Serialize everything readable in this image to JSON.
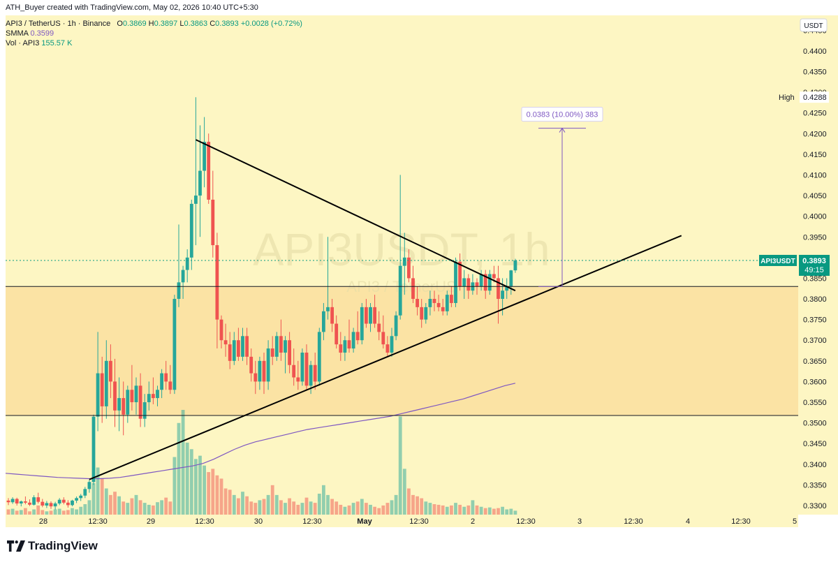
{
  "header": {
    "created_by": "ATH_Buyer created with TradingView.com, May 02, 2026 10:40 UTC+5:30",
    "symbol_line": "API3 / TetherUS · 1h · Binance",
    "o_label": "O",
    "o_val": "0.3869",
    "h_label": "H",
    "h_val": "0.3897",
    "l_label": "L",
    "l_val": "0.3863",
    "c_label": "C",
    "c_val": "0.3893",
    "change": "+0.0028 (+0.72%)",
    "smma_label": "SMMA",
    "smma_val": "0.3599",
    "vol_label": "Vol · API3",
    "vol_val": "155.57 K"
  },
  "watermark": {
    "main": "API3USDT, 1h",
    "sub": "API3 / TetherUS"
  },
  "currency_button": "USDT",
  "high_marker": {
    "label": "High",
    "value": "0.4288"
  },
  "last_price": {
    "symbol": "API3USDT",
    "value": "0.3893",
    "countdown": "49:15"
  },
  "measure_label": "0.0383 (10.00%) 383",
  "footer": {
    "brand": "TradingView"
  },
  "colors": {
    "background": "#fdf6c3",
    "zone": "#fbe3a4",
    "up": "#26a69a",
    "down": "#ef5350",
    "smma": "#7e57c2",
    "price_line": "#089981",
    "trendline": "#000000"
  },
  "chart_data": {
    "type": "candlestick",
    "symbol": "API3 / TetherUS",
    "timeframe": "1h",
    "y_ticks": [
      "0.4450",
      "0.4400",
      "0.4350",
      "0.4300",
      "0.4250",
      "0.4200",
      "0.4150",
      "0.4100",
      "0.4050",
      "0.4000",
      "0.3950",
      "0.3900",
      "0.3850",
      "0.3800",
      "0.3750",
      "0.3700",
      "0.3650",
      "0.3600",
      "0.3550",
      "0.3500",
      "0.3450",
      "0.3400",
      "0.3350",
      "0.3300"
    ],
    "x_ticks": [
      "28",
      "12:30",
      "29",
      "12:30",
      "30",
      "12:30",
      "May",
      "12:30",
      "2",
      "12:30",
      "3",
      "12:30",
      "4",
      "12:30",
      "5"
    ],
    "ylim": [
      0.3278,
      0.4486
    ],
    "candles": [
      [
        0.3312,
        0.3318,
        0.3301,
        0.3308
      ],
      [
        0.3308,
        0.332,
        0.3304,
        0.3316
      ],
      [
        0.3316,
        0.3319,
        0.33,
        0.3305
      ],
      [
        0.3305,
        0.3312,
        0.3298,
        0.331
      ],
      [
        0.331,
        0.3322,
        0.3303,
        0.3307
      ],
      [
        0.3307,
        0.3315,
        0.3299,
        0.3302
      ],
      [
        0.3302,
        0.3325,
        0.33,
        0.332
      ],
      [
        0.332,
        0.3331,
        0.3305,
        0.3309
      ],
      [
        0.3309,
        0.3316,
        0.3296,
        0.33
      ],
      [
        0.33,
        0.3311,
        0.3294,
        0.3306
      ],
      [
        0.3306,
        0.331,
        0.3292,
        0.3298
      ],
      [
        0.3298,
        0.3309,
        0.329,
        0.3305
      ],
      [
        0.3305,
        0.3318,
        0.3301,
        0.3314
      ],
      [
        0.3314,
        0.332,
        0.3303,
        0.3307
      ],
      [
        0.3307,
        0.3313,
        0.3295,
        0.3301
      ],
      [
        0.3301,
        0.3314,
        0.3298,
        0.3312
      ],
      [
        0.3312,
        0.3322,
        0.3306,
        0.3318
      ],
      [
        0.3318,
        0.3328,
        0.3311,
        0.3324
      ],
      [
        0.3324,
        0.3345,
        0.3318,
        0.334
      ],
      [
        0.334,
        0.3362,
        0.3331,
        0.3357
      ],
      [
        0.3357,
        0.352,
        0.335,
        0.3515
      ],
      [
        0.3515,
        0.372,
        0.348,
        0.362
      ],
      [
        0.362,
        0.366,
        0.35,
        0.354
      ],
      [
        0.354,
        0.37,
        0.351,
        0.365
      ],
      [
        0.365,
        0.369,
        0.356,
        0.36
      ],
      [
        0.36,
        0.3655,
        0.349,
        0.353
      ],
      [
        0.353,
        0.361,
        0.348,
        0.356
      ],
      [
        0.356,
        0.36,
        0.347,
        0.352
      ],
      [
        0.352,
        0.359,
        0.35,
        0.358
      ],
      [
        0.358,
        0.364,
        0.353,
        0.355
      ],
      [
        0.355,
        0.361,
        0.352,
        0.359
      ],
      [
        0.359,
        0.362,
        0.349,
        0.351
      ],
      [
        0.351,
        0.357,
        0.349,
        0.355
      ],
      [
        0.355,
        0.36,
        0.353,
        0.357
      ],
      [
        0.357,
        0.361,
        0.3545,
        0.356
      ],
      [
        0.356,
        0.359,
        0.354,
        0.358
      ],
      [
        0.358,
        0.363,
        0.356,
        0.362
      ],
      [
        0.362,
        0.365,
        0.358,
        0.36
      ],
      [
        0.36,
        0.364,
        0.357,
        0.358
      ],
      [
        0.358,
        0.381,
        0.357,
        0.38
      ],
      [
        0.38,
        0.398,
        0.378,
        0.384
      ],
      [
        0.384,
        0.388,
        0.38,
        0.387
      ],
      [
        0.387,
        0.392,
        0.384,
        0.39
      ],
      [
        0.39,
        0.404,
        0.387,
        0.403
      ],
      [
        0.403,
        0.4288,
        0.393,
        0.405
      ],
      [
        0.405,
        0.422,
        0.395,
        0.411
      ],
      [
        0.411,
        0.424,
        0.407,
        0.418
      ],
      [
        0.418,
        0.42,
        0.403,
        0.404
      ],
      [
        0.404,
        0.411,
        0.39,
        0.393
      ],
      [
        0.393,
        0.396,
        0.368,
        0.375
      ],
      [
        0.375,
        0.376,
        0.368,
        0.37
      ],
      [
        0.37,
        0.374,
        0.366,
        0.369
      ],
      [
        0.369,
        0.372,
        0.363,
        0.365
      ],
      [
        0.365,
        0.372,
        0.364,
        0.37
      ],
      [
        0.37,
        0.373,
        0.365,
        0.366
      ],
      [
        0.366,
        0.373,
        0.365,
        0.371
      ],
      [
        0.371,
        0.373,
        0.364,
        0.366
      ],
      [
        0.366,
        0.368,
        0.36,
        0.362
      ],
      [
        0.362,
        0.365,
        0.357,
        0.36
      ],
      [
        0.36,
        0.366,
        0.358,
        0.365
      ],
      [
        0.365,
        0.367,
        0.357,
        0.36
      ],
      [
        0.36,
        0.37,
        0.358,
        0.368
      ],
      [
        0.368,
        0.371,
        0.364,
        0.366
      ],
      [
        0.366,
        0.372,
        0.365,
        0.371
      ],
      [
        0.371,
        0.375,
        0.365,
        0.367
      ],
      [
        0.367,
        0.371,
        0.362,
        0.37
      ],
      [
        0.37,
        0.372,
        0.362,
        0.364
      ],
      [
        0.364,
        0.368,
        0.359,
        0.361
      ],
      [
        0.361,
        0.365,
        0.358,
        0.36
      ],
      [
        0.36,
        0.368,
        0.359,
        0.367
      ],
      [
        0.367,
        0.369,
        0.358,
        0.359
      ],
      [
        0.359,
        0.365,
        0.357,
        0.364
      ],
      [
        0.364,
        0.367,
        0.358,
        0.36
      ],
      [
        0.36,
        0.373,
        0.359,
        0.372
      ],
      [
        0.372,
        0.379,
        0.37,
        0.377
      ],
      [
        0.377,
        0.395,
        0.375,
        0.378
      ],
      [
        0.378,
        0.38,
        0.372,
        0.374
      ],
      [
        0.374,
        0.376,
        0.368,
        0.369
      ],
      [
        0.369,
        0.372,
        0.365,
        0.367
      ],
      [
        0.367,
        0.371,
        0.365,
        0.37
      ],
      [
        0.37,
        0.375,
        0.367,
        0.368
      ],
      [
        0.368,
        0.373,
        0.367,
        0.372
      ],
      [
        0.372,
        0.377,
        0.369,
        0.37
      ],
      [
        0.37,
        0.379,
        0.369,
        0.378
      ],
      [
        0.378,
        0.38,
        0.373,
        0.374
      ],
      [
        0.374,
        0.379,
        0.372,
        0.378
      ],
      [
        0.378,
        0.381,
        0.373,
        0.374
      ],
      [
        0.374,
        0.377,
        0.37,
        0.372
      ],
      [
        0.372,
        0.376,
        0.368,
        0.369
      ],
      [
        0.369,
        0.371,
        0.366,
        0.367
      ],
      [
        0.367,
        0.373,
        0.366,
        0.371
      ],
      [
        0.371,
        0.377,
        0.37,
        0.376
      ],
      [
        0.376,
        0.41,
        0.375,
        0.388
      ],
      [
        0.388,
        0.396,
        0.381,
        0.39
      ],
      [
        0.39,
        0.392,
        0.384,
        0.385
      ],
      [
        0.385,
        0.388,
        0.379,
        0.38
      ],
      [
        0.38,
        0.383,
        0.376,
        0.378
      ],
      [
        0.378,
        0.38,
        0.373,
        0.375
      ],
      [
        0.375,
        0.379,
        0.374,
        0.378
      ],
      [
        0.378,
        0.382,
        0.376,
        0.38
      ],
      [
        0.38,
        0.382,
        0.377,
        0.379
      ],
      [
        0.379,
        0.381,
        0.377,
        0.378
      ],
      [
        0.378,
        0.38,
        0.376,
        0.377
      ],
      [
        0.377,
        0.382,
        0.376,
        0.381
      ],
      [
        0.381,
        0.383,
        0.378,
        0.379
      ],
      [
        0.379,
        0.39,
        0.378,
        0.389
      ],
      [
        0.389,
        0.391,
        0.382,
        0.383
      ],
      [
        0.383,
        0.387,
        0.38,
        0.385
      ],
      [
        0.385,
        0.386,
        0.38,
        0.382
      ],
      [
        0.382,
        0.386,
        0.381,
        0.384
      ],
      [
        0.384,
        0.385,
        0.381,
        0.383
      ],
      [
        0.383,
        0.387,
        0.382,
        0.386
      ],
      [
        0.386,
        0.387,
        0.38,
        0.382
      ],
      [
        0.382,
        0.387,
        0.381,
        0.386
      ],
      [
        0.386,
        0.388,
        0.384,
        0.385
      ],
      [
        0.385,
        0.388,
        0.374,
        0.38
      ],
      [
        0.38,
        0.385,
        0.376,
        0.382
      ],
      [
        0.382,
        0.385,
        0.38,
        0.383
      ],
      [
        0.383,
        0.387,
        0.381,
        0.3869
      ],
      [
        0.3869,
        0.3897,
        0.3863,
        0.3893
      ]
    ],
    "volumes": [
      8,
      9,
      6,
      7,
      10,
      5,
      8,
      14,
      7,
      5,
      6,
      8,
      9,
      6,
      7,
      10,
      8,
      12,
      16,
      22,
      48,
      72,
      55,
      40,
      30,
      35,
      28,
      20,
      18,
      25,
      30,
      22,
      18,
      15,
      14,
      19,
      22,
      26,
      20,
      88,
      140,
      160,
      110,
      100,
      85,
      90,
      75,
      65,
      70,
      60,
      55,
      40,
      38,
      30,
      25,
      35,
      28,
      20,
      18,
      22,
      24,
      30,
      45,
      30,
      22,
      18,
      25,
      20,
      15,
      18,
      26,
      20,
      18,
      32,
      45,
      30,
      24,
      20,
      15,
      12,
      14,
      18,
      20,
      24,
      18,
      15,
      12,
      10,
      14,
      18,
      22,
      30,
      150,
      70,
      40,
      30,
      28,
      25,
      20,
      18,
      16,
      15,
      14,
      12,
      14,
      18,
      15,
      12,
      14,
      22,
      14,
      12,
      10,
      11,
      9,
      10,
      12,
      8,
      9,
      6
    ],
    "smma": [
      0.3378,
      0.3376,
      0.3374,
      0.3372,
      0.337,
      0.3368,
      0.3367,
      0.3366,
      0.3365,
      0.3365,
      0.3366,
      0.3368,
      0.3372,
      0.3376,
      0.338,
      0.3384,
      0.3388,
      0.3392,
      0.3396,
      0.3402,
      0.3412,
      0.3424,
      0.3436,
      0.3446,
      0.3454,
      0.346,
      0.3466,
      0.3472,
      0.3478,
      0.3484,
      0.3488,
      0.3492,
      0.3496,
      0.35,
      0.3504,
      0.3508,
      0.3512,
      0.3516,
      0.3522,
      0.3528,
      0.3534,
      0.354,
      0.3546,
      0.3552,
      0.3558,
      0.3566,
      0.3574,
      0.3582,
      0.359,
      0.3596
    ],
    "trendlines": [
      {
        "from": {
          "bar": 44,
          "price": 0.4185
        },
        "to": {
          "bar": 119,
          "price": 0.382
        }
      },
      {
        "from": {
          "bar": 19,
          "price": 0.3363
        },
        "to": {
          "bar": 158,
          "price": 0.3953
        }
      }
    ],
    "horizontal_lines": [
      0.383,
      0.3518
    ],
    "zone": [
      0.383,
      0.3518
    ],
    "measure": {
      "bar": 130,
      "from": 0.383,
      "to": 0.4213
    }
  }
}
